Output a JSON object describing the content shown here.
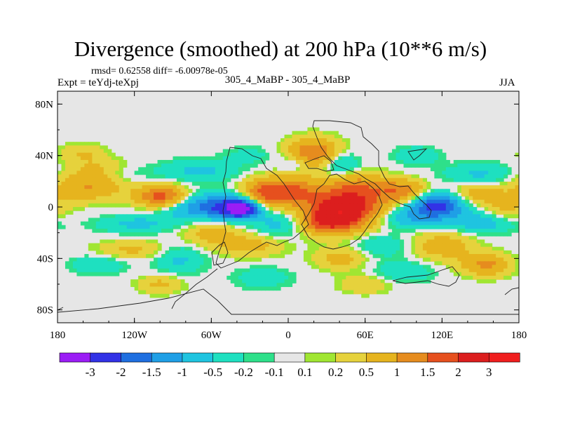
{
  "chart_data": {
    "type": "heatmap",
    "title": "Divergence (smoothed) at 200 hPa (10**6 m/s)",
    "subtitle_left": "Expt = teYdj-teXpj",
    "subtitle_center": "305_4_MaBP - 305_4_MaBP",
    "subtitle_right": "JJA",
    "stats_text": "rmsd= 0.62558  diff= -6.00978e-05",
    "x_axis": {
      "range": [
        -180,
        180
      ],
      "ticks": [
        -180,
        -120,
        -60,
        0,
        60,
        120,
        180
      ],
      "tick_labels": [
        "180",
        "120W",
        "60W",
        "0",
        "60E",
        "120E",
        "180"
      ]
    },
    "y_axis": {
      "range": [
        -90,
        90
      ],
      "ticks": [
        80,
        40,
        0,
        -40,
        -80
      ],
      "tick_labels": [
        "80N",
        "40N",
        "0",
        "40S",
        "80S"
      ]
    },
    "colorbar": {
      "labels": [
        "-3",
        "-2",
        "-1.5",
        "-1",
        "-0.5",
        "-0.2",
        "-0.1",
        "0.1",
        "0.2",
        "0.5",
        "1",
        "1.5",
        "2",
        "3"
      ],
      "colors": [
        "#9b1df5",
        "#3232e6",
        "#1f6fe0",
        "#1f9fe6",
        "#1fc4e0",
        "#1ee0c0",
        "#2ee08a",
        "#e6e6e6",
        "#a0e632",
        "#e6d23c",
        "#e6b41e",
        "#e68c1e",
        "#e6501e",
        "#dc1e1e",
        "#f01e1e"
      ]
    },
    "features": [
      {
        "lon": -157,
        "lat": 16,
        "sx": 20,
        "sy": 8,
        "v": 1.0
      },
      {
        "lon": -98,
        "lat": 8,
        "sx": 14,
        "sy": 6,
        "v": 1.8
      },
      {
        "lon": -148,
        "lat": 29,
        "sx": 16,
        "sy": 6,
        "v": 0.6
      },
      {
        "lon": -118,
        "lat": -13,
        "sx": 22,
        "sy": 5,
        "v": -0.6
      },
      {
        "lon": -138,
        "lat": 26,
        "sx": 18,
        "sy": 5,
        "v": -0.4
      },
      {
        "lon": -120,
        "lat": -33,
        "sx": 20,
        "sy": 5,
        "v": 0.6
      },
      {
        "lon": -150,
        "lat": -45,
        "sx": 16,
        "sy": 5,
        "v": -0.5
      },
      {
        "lon": -60,
        "lat": 0,
        "sx": 22,
        "sy": 7,
        "v": -1.8
      },
      {
        "lon": -37,
        "lat": -1,
        "sx": 10,
        "sy": 5,
        "v": -3.0
      },
      {
        "lon": -60,
        "lat": -20,
        "sx": 16,
        "sy": 7,
        "v": 0.7
      },
      {
        "lon": -70,
        "lat": 28,
        "sx": 22,
        "sy": 6,
        "v": -0.6
      },
      {
        "lon": -85,
        "lat": -40,
        "sx": 14,
        "sy": 8,
        "v": -0.6
      },
      {
        "lon": -20,
        "lat": 10,
        "sx": 12,
        "sy": 8,
        "v": 1.5
      },
      {
        "lon": 3,
        "lat": 12,
        "sx": 14,
        "sy": 8,
        "v": 1.5
      },
      {
        "lon": -5,
        "lat": -13,
        "sx": 16,
        "sy": 7,
        "v": -0.7
      },
      {
        "lon": 45,
        "lat": 0,
        "sx": 20,
        "sy": 10,
        "v": 2.6
      },
      {
        "lon": 30,
        "lat": -12,
        "sx": 16,
        "sy": 7,
        "v": 1.6
      },
      {
        "lon": 55,
        "lat": 17,
        "sx": 18,
        "sy": 7,
        "v": 0.9
      },
      {
        "lon": 20,
        "lat": 42,
        "sx": 14,
        "sy": 8,
        "v": 1.5
      },
      {
        "lon": 40,
        "lat": 34,
        "sx": 10,
        "sy": 6,
        "v": -0.8
      },
      {
        "lon": 5,
        "lat": 34,
        "sx": 8,
        "sy": 5,
        "v": -0.5
      },
      {
        "lon": 90,
        "lat": 12,
        "sx": 14,
        "sy": 6,
        "v": 1.3
      },
      {
        "lon": 117,
        "lat": 2,
        "sx": 14,
        "sy": 7,
        "v": -2.3
      },
      {
        "lon": 95,
        "lat": -8,
        "sx": 18,
        "sy": 6,
        "v": -0.9
      },
      {
        "lon": 150,
        "lat": -12,
        "sx": 18,
        "sy": 6,
        "v": -0.8
      },
      {
        "lon": 145,
        "lat": 10,
        "sx": 18,
        "sy": 6,
        "v": 0.8
      },
      {
        "lon": 150,
        "lat": 25,
        "sx": 20,
        "sy": 6,
        "v": -0.6
      },
      {
        "lon": 120,
        "lat": -30,
        "sx": 18,
        "sy": 8,
        "v": 0.8
      },
      {
        "lon": 155,
        "lat": -45,
        "sx": 14,
        "sy": 6,
        "v": 1.1
      },
      {
        "lon": 75,
        "lat": -30,
        "sx": 16,
        "sy": 6,
        "v": -0.5
      },
      {
        "lon": 90,
        "lat": -50,
        "sx": 16,
        "sy": 6,
        "v": -0.5
      },
      {
        "lon": 40,
        "lat": -40,
        "sx": 14,
        "sy": 6,
        "v": 0.7
      },
      {
        "lon": -30,
        "lat": -30,
        "sx": 18,
        "sy": 6,
        "v": 0.7
      },
      {
        "lon": -20,
        "lat": -55,
        "sx": 16,
        "sy": 6,
        "v": -0.4
      },
      {
        "lon": -100,
        "lat": -60,
        "sx": 12,
        "sy": 5,
        "v": 0.6
      },
      {
        "lon": 60,
        "lat": -60,
        "sx": 14,
        "sy": 5,
        "v": 0.5
      },
      {
        "lon": -160,
        "lat": 42,
        "sx": 12,
        "sy": 5,
        "v": 0.5
      },
      {
        "lon": -30,
        "lat": 40,
        "sx": 14,
        "sy": 5,
        "v": -0.3
      },
      {
        "lon": 100,
        "lat": 40,
        "sx": 12,
        "sy": 5,
        "v": -0.5
      },
      {
        "lon": 170,
        "lat": -2,
        "sx": 12,
        "sy": 6,
        "v": 0.6
      }
    ]
  }
}
